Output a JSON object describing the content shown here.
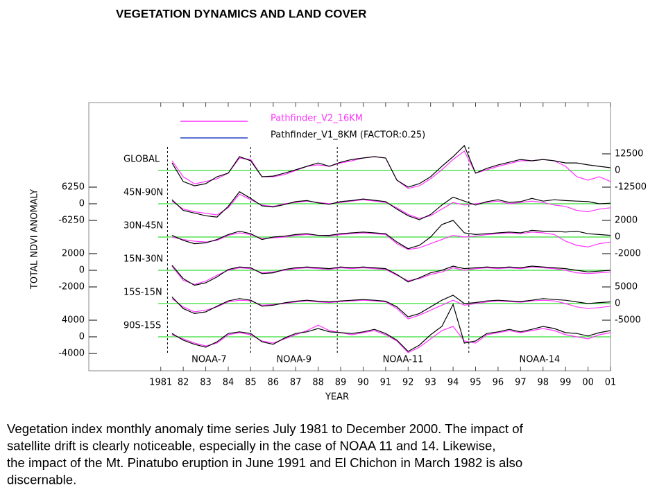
{
  "title": "VEGETATION DYNAMICS AND LAND COVER",
  "caption": [
    "Vegetation index monthly anomaly time series July 1981 to December 2000. The impact of",
    "satellite drift is clearly noticeable, especially in the case of NOAA 11 and 14. Likewise,",
    "the impact of the Mt. Pinatubo eruption in June 1991 and El Chichon in March 1982 is also",
    "discernable."
  ],
  "chart_data": {
    "type": "line",
    "xlabel": "YEAR",
    "ylabel": "TOTAL NDVI ANOMALY",
    "legend": [
      {
        "name": "Pathfinder_V2_16KM",
        "color": "#ff33ff"
      },
      {
        "name": "Pathfinder_V1_8KM (FACTOR:0.25)",
        "color": "#2040c0"
      }
    ],
    "xlim": [
      1977.8,
      2001.0
    ],
    "xticks": [
      {
        "value": 1981,
        "label": "1981"
      },
      {
        "value": 1982,
        "label": "82"
      },
      {
        "value": 1983,
        "label": "83"
      },
      {
        "value": 1984,
        "label": "84"
      },
      {
        "value": 1985,
        "label": "85"
      },
      {
        "value": 1986,
        "label": "86"
      },
      {
        "value": 1987,
        "label": "87"
      },
      {
        "value": 1988,
        "label": "88"
      },
      {
        "value": 1989,
        "label": "89"
      },
      {
        "value": 1990,
        "label": "90"
      },
      {
        "value": 1991,
        "label": "91"
      },
      {
        "value": 1992,
        "label": "92"
      },
      {
        "value": 1993,
        "label": "93"
      },
      {
        "value": 1994,
        "label": "94"
      },
      {
        "value": 1995,
        "label": "95"
      },
      {
        "value": 1996,
        "label": "96"
      },
      {
        "value": 1997,
        "label": "97"
      },
      {
        "value": 1998,
        "label": "98"
      },
      {
        "value": 1999,
        "label": "99"
      },
      {
        "value": 2000,
        "label": "00"
      },
      {
        "value": 2001,
        "label": "01"
      }
    ],
    "satellites": [
      {
        "name": "NOAA-7",
        "start": 1981.3
      },
      {
        "name": "NOAA-9",
        "start": 1985.0
      },
      {
        "name": "NOAA-11",
        "start": 1988.85
      },
      {
        "name": "NOAA-14",
        "start": 1994.7
      }
    ],
    "zero_line_color": "#33dd33",
    "x": [
      1981.5,
      1982.0,
      1982.5,
      1983.0,
      1983.5,
      1984.0,
      1984.5,
      1985.0,
      1985.5,
      1986.0,
      1986.5,
      1987.0,
      1987.5,
      1988.0,
      1988.5,
      1989.0,
      1989.5,
      1990.0,
      1990.5,
      1991.0,
      1991.5,
      1992.0,
      1992.5,
      1993.0,
      1993.5,
      1994.0,
      1994.5,
      1995.0,
      1995.5,
      1996.0,
      1996.5,
      1997.0,
      1997.5,
      1998.0,
      1998.5,
      1999.0,
      1999.5,
      2000.0,
      2000.5,
      2001.0
    ],
    "panels": [
      {
        "label": "GLOBAL",
        "axis": "right",
        "ylim": [
          -25000,
          25000
        ],
        "yticks": [
          12500,
          0,
          -12500
        ],
        "series": [
          {
            "color": "#ff33ff",
            "values": [
              7300,
              -4700,
              -10000,
              -8300,
              -6200,
              -2000,
              9400,
              8300,
              -4700,
              -4700,
              -3100,
              0,
              3100,
              4200,
              3100,
              5700,
              7300,
              9400,
              10400,
              9400,
              -7300,
              -13500,
              -11500,
              -6200,
              500,
              8300,
              14600,
              -2000,
              500,
              3100,
              5200,
              7300,
              7300,
              8300,
              7300,
              3100,
              -4700,
              -7300,
              -4700,
              -8300
            ]
          },
          {
            "color": "#000000",
            "values": [
              5700,
              -8300,
              -11500,
              -9900,
              -4700,
              -2000,
              10400,
              7300,
              -4700,
              -4200,
              -2000,
              500,
              3100,
              5700,
              3100,
              6200,
              8300,
              9400,
              10400,
              9400,
              -7300,
              -12500,
              -9900,
              -4700,
              3100,
              10400,
              18700,
              -2000,
              1600,
              4200,
              6200,
              8300,
              7300,
              8300,
              7300,
              5700,
              5700,
              4200,
              3100,
              2100
            ]
          }
        ]
      },
      {
        "label": "45N-90N",
        "axis": "left",
        "ylim": [
          -12500,
          12500
        ],
        "yticks": [
          6250,
          0,
          -6250
        ],
        "series": [
          {
            "color": "#ff33ff",
            "values": [
              1000,
              -2000,
              -3000,
              -3600,
              -4200,
              -1500,
              3600,
              1500,
              -500,
              -1000,
              0,
              500,
              1000,
              500,
              0,
              500,
              1000,
              1500,
              1000,
              500,
              -1500,
              -4000,
              -5500,
              -4500,
              -2000,
              500,
              -500,
              0,
              500,
              1000,
              0,
              500,
              1000,
              500,
              -500,
              -1000,
              -2500,
              -3000,
              -2000,
              -1500
            ]
          },
          {
            "color": "#000000",
            "values": [
              1500,
              -2500,
              -3500,
              -4500,
              -5000,
              -1000,
              4500,
              2000,
              -800,
              -1200,
              -300,
              800,
              1200,
              300,
              -200,
              800,
              1200,
              1800,
              1300,
              800,
              -2000,
              -4500,
              -6000,
              -4000,
              -500,
              2500,
              1000,
              -500,
              800,
              1500,
              500,
              800,
              2000,
              1000,
              1500,
              1200,
              1000,
              800,
              0,
              200
            ]
          }
        ]
      },
      {
        "label": "30N-45N",
        "axis": "right",
        "ylim": [
          -4000,
          4000
        ],
        "yticks": [
          2000,
          0,
          -2000
        ],
        "series": [
          {
            "color": "#ff33ff",
            "values": [
              0,
              -300,
              -500,
              -600,
              -400,
              200,
              500,
              300,
              -200,
              -100,
              0,
              200,
              300,
              200,
              100,
              300,
              400,
              500,
              400,
              300,
              -800,
              -1500,
              -1300,
              -800,
              -300,
              200,
              0,
              100,
              300,
              400,
              500,
              400,
              600,
              500,
              300,
              -500,
              -1000,
              -1200,
              -800,
              -600
            ]
          },
          {
            "color": "#000000",
            "values": [
              200,
              -400,
              -800,
              -700,
              -300,
              300,
              700,
              400,
              -300,
              0,
              100,
              300,
              400,
              200,
              200,
              400,
              500,
              600,
              500,
              400,
              -600,
              -1400,
              -1000,
              0,
              1500,
              2000,
              500,
              300,
              400,
              500,
              600,
              500,
              800,
              700,
              700,
              600,
              700,
              400,
              300,
              200
            ]
          }
        ]
      },
      {
        "label": "15N-30N",
        "axis": "left",
        "ylim": [
          -4000,
          4000
        ],
        "yticks": [
          2000,
          0,
          -2000
        ],
        "series": [
          {
            "color": "#ff33ff",
            "values": [
              500,
              -1200,
              -1700,
              -1300,
              -600,
              0,
              300,
              200,
              -300,
              -200,
              0,
              200,
              300,
              200,
              100,
              300,
              200,
              300,
              200,
              100,
              -600,
              -1250,
              -1000,
              -500,
              -200,
              300,
              0,
              200,
              300,
              200,
              300,
              200,
              400,
              300,
              200,
              0,
              -300,
              -400,
              -300,
              -200
            ]
          },
          {
            "color": "#000000",
            "values": [
              600,
              -1000,
              -1800,
              -1500,
              -800,
              100,
              400,
              300,
              -400,
              -300,
              100,
              300,
              400,
              300,
              200,
              400,
              300,
              400,
              300,
              200,
              -500,
              -1400,
              -900,
              -300,
              0,
              500,
              200,
              300,
              400,
              300,
              400,
              300,
              500,
              400,
              300,
              200,
              0,
              -200,
              -100,
              0
            ]
          }
        ]
      },
      {
        "label": "15S-15N",
        "axis": "right",
        "ylim": [
          -10000,
          10000
        ],
        "yticks": [
          5000,
          0,
          -5000
        ],
        "series": [
          {
            "color": "#ff33ff",
            "values": [
              1500,
              -1000,
              -2500,
              -2000,
              -1000,
              500,
              1000,
              800,
              -500,
              -300,
              0,
              500,
              800,
              500,
              300,
              600,
              800,
              1000,
              800,
              500,
              -1500,
              -4600,
              -3500,
              -2000,
              -500,
              1000,
              -500,
              0,
              500,
              800,
              600,
              400,
              800,
              1000,
              800,
              0,
              -1000,
              -1500,
              -1200,
              -800
            ]
          },
          {
            "color": "#000000",
            "values": [
              2000,
              -1500,
              -3000,
              -2500,
              -800,
              800,
              1500,
              1000,
              -800,
              -500,
              200,
              700,
              1000,
              700,
              500,
              800,
              1000,
              1200,
              1000,
              700,
              -1000,
              -4000,
              -3000,
              -1000,
              1000,
              2500,
              0,
              300,
              800,
              1000,
              800,
              600,
              1000,
              1500,
              1200,
              1000,
              500,
              0,
              300,
              500
            ]
          }
        ]
      },
      {
        "label": "90S-15S",
        "axis": "left",
        "ylim": [
          -8000,
          8000
        ],
        "yticks": [
          4000,
          0,
          -4000
        ],
        "series": [
          {
            "color": "#ff33ff",
            "values": [
              500,
              -500,
              -1500,
              -2200,
              -1500,
              500,
              1000,
              500,
              -1000,
              -1500,
              -500,
              500,
              1500,
              2800,
              1500,
              1000,
              500,
              1000,
              1500,
              500,
              -1000,
              -3800,
              -2500,
              -500,
              1500,
              2500,
              -1000,
              -1500,
              500,
              1000,
              1500,
              1000,
              1500,
              2000,
              1500,
              500,
              0,
              -500,
              500,
              1000
            ]
          },
          {
            "color": "#000000",
            "values": [
              800,
              -800,
              -1800,
              -2500,
              -1200,
              800,
              1200,
              800,
              -1200,
              -1800,
              -300,
              800,
              1200,
              2000,
              1200,
              1000,
              800,
              1200,
              1800,
              800,
              -800,
              -3500,
              -2000,
              500,
              2500,
              7800,
              -1500,
              -1000,
              800,
              1200,
              1800,
              1200,
              1800,
              2500,
              2000,
              1000,
              800,
              200,
              1000,
              1500
            ]
          }
        ]
      }
    ]
  }
}
